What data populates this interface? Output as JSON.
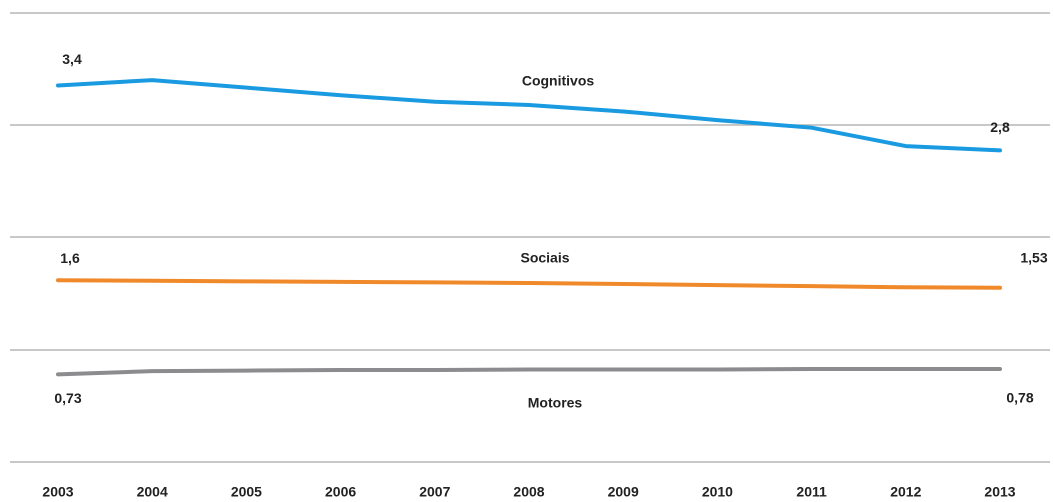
{
  "chart_data": {
    "type": "line",
    "categories": [
      "2003",
      "2004",
      "2005",
      "2006",
      "2007",
      "2008",
      "2009",
      "2010",
      "2011",
      "2012",
      "2013"
    ],
    "ylim": [
      -0.08,
      4.07
    ],
    "series": [
      {
        "name": "Cognitivos",
        "color": "#1a9ae0",
        "values": [
          3.4,
          3.45,
          3.38,
          3.31,
          3.25,
          3.22,
          3.16,
          3.08,
          3.01,
          2.84,
          2.8
        ],
        "value_labels": [
          "3,4",
          null,
          null,
          null,
          null,
          null,
          null,
          null,
          null,
          null,
          "2,8"
        ]
      },
      {
        "name": "Sociais",
        "color": "#f0892a",
        "values": [
          1.6,
          1.595,
          1.59,
          1.585,
          1.58,
          1.575,
          1.565,
          1.555,
          1.545,
          1.535,
          1.53
        ],
        "value_labels": [
          "1,6",
          null,
          null,
          null,
          null,
          null,
          null,
          null,
          null,
          null,
          "1,53"
        ]
      },
      {
        "name": "Motores",
        "color": "#8c8c8e",
        "values": [
          0.73,
          0.76,
          0.765,
          0.77,
          0.77,
          0.775,
          0.775,
          0.775,
          0.78,
          0.78,
          0.78
        ],
        "value_labels": [
          "0,73",
          null,
          null,
          null,
          null,
          null,
          null,
          null,
          null,
          null,
          "0,78"
        ]
      }
    ]
  }
}
